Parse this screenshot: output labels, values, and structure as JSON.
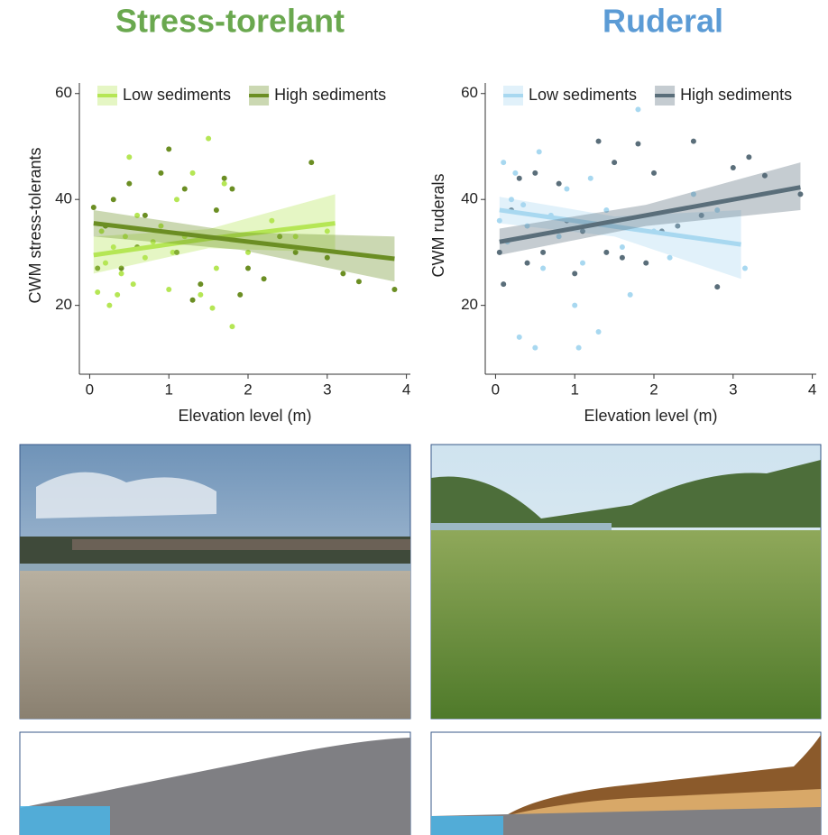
{
  "chart_data": [
    {
      "type": "scatter",
      "title": "Stress-torelant",
      "title_color": "#6aa84f",
      "xlabel": "Elevation level (m)",
      "ylabel": "CWM stress-tolerants",
      "xlim": [
        -0.13,
        4.05
      ],
      "ylim": [
        7,
        62
      ],
      "xticks": [
        0,
        1,
        2,
        3,
        4
      ],
      "yticks": [
        20,
        40,
        60
      ],
      "series": [
        {
          "name": "Low sediments",
          "color": "#b5e655",
          "x": [
            0.1,
            0.15,
            0.2,
            0.25,
            0.3,
            0.35,
            0.4,
            0.45,
            0.5,
            0.55,
            0.6,
            0.7,
            0.8,
            0.9,
            1.0,
            1.05,
            1.1,
            1.2,
            1.3,
            1.4,
            1.5,
            1.55,
            1.6,
            1.7,
            1.8,
            2.0,
            2.3,
            2.6,
            3.0
          ],
          "values": [
            22.5,
            34,
            28,
            20,
            31,
            22,
            26,
            33,
            48,
            24,
            37,
            29,
            32,
            35,
            23,
            30,
            40,
            33,
            45,
            22,
            51.5,
            19.5,
            27,
            43,
            16,
            30,
            36,
            33,
            34
          ],
          "fit": {
            "x": [
              0.05,
              1.5,
              3.1
            ],
            "y": [
              29.5,
              32.6,
              35.5
            ],
            "lower": [
              26,
              30.8,
              30
            ],
            "upper": [
              33,
              34.4,
              41
            ]
          }
        },
        {
          "name": "High sediments",
          "color": "#6b8e23",
          "x": [
            0.05,
            0.1,
            0.2,
            0.3,
            0.4,
            0.5,
            0.6,
            0.7,
            0.9,
            1.0,
            1.1,
            1.2,
            1.3,
            1.4,
            1.6,
            1.7,
            1.8,
            1.9,
            2.0,
            2.2,
            2.4,
            2.6,
            2.8,
            3.0,
            3.2,
            3.4,
            3.85
          ],
          "values": [
            38.5,
            27,
            35,
            40,
            27,
            43,
            31,
            37,
            45,
            49.5,
            30,
            42,
            21,
            24,
            38,
            44,
            42,
            22,
            27,
            25,
            33,
            30,
            47,
            29,
            26,
            24.5,
            23
          ],
          "fit": {
            "x": [
              0.05,
              1.9,
              3.85
            ],
            "y": [
              35.5,
              32.2,
              28.8
            ],
            "lower": [
              33,
              30.5,
              24.5
            ],
            "upper": [
              38,
              33.8,
              33
            ]
          }
        }
      ]
    },
    {
      "type": "scatter",
      "title": "Ruderal",
      "title_color": "#5b9bd5",
      "xlabel": "Elevation level (m)",
      "ylabel": "CWM ruderals",
      "xlim": [
        -0.13,
        4.05
      ],
      "ylim": [
        7,
        62
      ],
      "xticks": [
        0,
        1,
        2,
        3,
        4
      ],
      "yticks": [
        20,
        40,
        60
      ],
      "series": [
        {
          "name": "Low sediments",
          "color": "#a8d8f0",
          "x": [
            0.05,
            0.1,
            0.15,
            0.2,
            0.25,
            0.3,
            0.35,
            0.4,
            0.5,
            0.55,
            0.6,
            0.7,
            0.8,
            0.9,
            1.0,
            1.05,
            1.1,
            1.2,
            1.3,
            1.4,
            1.6,
            1.7,
            1.8,
            2.0,
            2.2,
            2.5,
            2.8,
            3.15
          ],
          "values": [
            36,
            47,
            32,
            40,
            45,
            14,
            39,
            35,
            12,
            49,
            27,
            37,
            33,
            42,
            20,
            12,
            28,
            44,
            15,
            38,
            31,
            22,
            57,
            34,
            29,
            41,
            38,
            27
          ],
          "fit": {
            "x": [
              0.05,
              1.5,
              3.1
            ],
            "y": [
              38,
              34.9,
              31.5
            ],
            "lower": [
              35.5,
              33,
              25
            ],
            "upper": [
              40.5,
              36.8,
              38
            ]
          }
        },
        {
          "name": "High sediments",
          "color": "#5a6e7a",
          "x": [
            0.05,
            0.1,
            0.2,
            0.3,
            0.4,
            0.5,
            0.6,
            0.8,
            0.9,
            1.0,
            1.1,
            1.3,
            1.4,
            1.5,
            1.6,
            1.8,
            1.9,
            2.0,
            2.1,
            2.3,
            2.5,
            2.6,
            2.8,
            3.0,
            3.2,
            3.4,
            3.85
          ],
          "values": [
            30,
            24,
            38,
            44,
            28,
            45,
            30,
            43,
            36,
            26,
            34,
            51,
            30,
            47,
            29,
            50.5,
            28,
            45,
            34,
            35,
            51,
            37,
            23.5,
            46,
            48,
            44.5,
            41
          ],
          "fit": {
            "x": [
              0.05,
              1.9,
              3.85
            ],
            "y": [
              32,
              37,
              42.3
            ],
            "lower": [
              29.5,
              35,
              38
            ],
            "upper": [
              34.5,
              39,
              47
            ]
          }
        }
      ]
    }
  ]
}
